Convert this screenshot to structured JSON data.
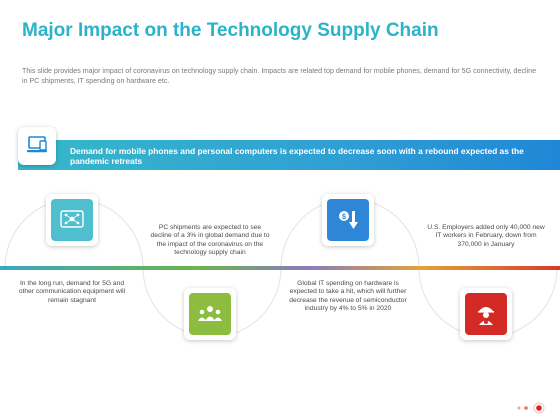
{
  "header": {
    "title": "Major Impact on the Technology Supply Chain",
    "subtitle": "This slide provides major impact of coronavirus on technology supply chain. Impacts are related top demand for mobile phones, demand for 5G connectivity, decline in PC shipments, IT spending on hardware etc."
  },
  "banner": {
    "text": "Demand for mobile phones and personal computers is expected to decrease soon with a rebound expected as the pandemic retreats",
    "icon": "computer-monitor-icon"
  },
  "steps": [
    {
      "text": "In the long run, demand for 5G and other communication equipment will remain stagnant",
      "icon": "network-icon",
      "color": "#4fbfcf"
    },
    {
      "text": "PC shipments are expected to see decline of a 3% in global demand due to the impact of the coronavirus on the technology supply chain",
      "icon": "people-network-icon",
      "color": "#8cbd3f"
    },
    {
      "text": "Global IT spending on hardware is expected to take a hit, which will further decrease the revenue of semiconductor industry by 4% to 5% in 2020",
      "icon": "dollar-down-arrow-icon",
      "color": "#2f86d6"
    },
    {
      "text": "U.S. Employers added only 40,000 new IT workers in February, down from 370,000 in January",
      "icon": "worker-gear-icon",
      "color": "#d42a26"
    }
  ],
  "colors": {
    "title": "#2ab3c9",
    "banner_start": "#36b8c9",
    "banner_end": "#1f87d6"
  }
}
